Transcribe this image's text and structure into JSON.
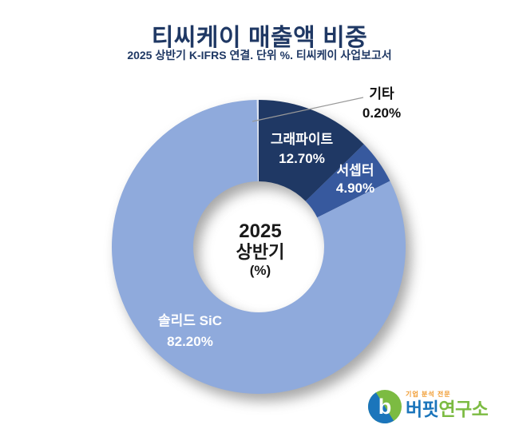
{
  "header": {
    "title": "티씨케이 매출액 비중",
    "subtitle": "2025 상반기 K-IFRS 연결. 단위 %. 티씨케이 사업보고서",
    "title_color": "#1F3864"
  },
  "chart_data": {
    "type": "pie",
    "subtype": "donut",
    "title": "티씨케이 매출액 비중",
    "unit": "%",
    "start_angle_deg": 0,
    "direction": "clockwise",
    "categories": [
      "그래파이트",
      "서셉터",
      "솔리드 SiC",
      "기타"
    ],
    "values": [
      12.7,
      4.9,
      82.2,
      0.2
    ],
    "value_labels": [
      "12.70%",
      "4.90%",
      "82.20%",
      "0.20%"
    ],
    "colors": [
      "#1F3864",
      "#37599E",
      "#8FAADC",
      "#DCE3F1"
    ],
    "center_text": [
      "2025",
      "상반기",
      "(%)"
    ],
    "legend": "none"
  },
  "center_label": {
    "line1": "2025",
    "line2": "상반기",
    "line3": "(%)"
  },
  "logo": {
    "tagline": "기업 분석 전문",
    "brand_blue_text": "버핏",
    "brand_green_text": "연구소",
    "icon_letter": "b",
    "colors": {
      "blue": "#1B75BB",
      "green": "#7CBB42",
      "orange": "#F09A2E"
    }
  }
}
